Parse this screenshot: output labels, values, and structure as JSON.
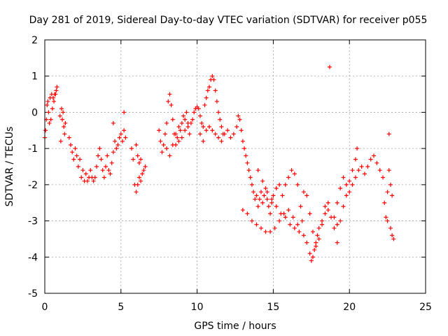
{
  "chart_data": {
    "type": "scatter",
    "title": "Day 281 of 2019, Sidereal Day-to-day VTEC variation (SDTVAR) for receiver p055",
    "xlabel": "GPS time / hours",
    "ylabel": "SDTVAR / TECUs",
    "xlim": [
      0,
      25
    ],
    "ylim": [
      -5,
      2
    ],
    "xticks": [
      0,
      5,
      10,
      15,
      20,
      25
    ],
    "yticks": [
      -5,
      -4,
      -3,
      -2,
      -1,
      0,
      1,
      2
    ],
    "grid": true,
    "marker": "+",
    "series": [
      {
        "name": "SDTVAR",
        "color": "#ff0000",
        "points": [
          [
            0.0,
            -0.7
          ],
          [
            0.05,
            -0.5
          ],
          [
            0.1,
            -0.2
          ],
          [
            0.15,
            0.2
          ],
          [
            0.2,
            0.3
          ],
          [
            0.25,
            0.0
          ],
          [
            0.3,
            -0.3
          ],
          [
            0.35,
            0.4
          ],
          [
            0.4,
            -0.2
          ],
          [
            0.45,
            0.5
          ],
          [
            0.5,
            0.1
          ],
          [
            0.55,
            0.4
          ],
          [
            0.6,
            0.3
          ],
          [
            0.65,
            0.5
          ],
          [
            0.7,
            0.5
          ],
          [
            0.75,
            0.6
          ],
          [
            0.8,
            0.7
          ],
          [
            1.0,
            -0.1
          ],
          [
            1.05,
            -0.8
          ],
          [
            1.1,
            0.1
          ],
          [
            1.15,
            -0.2
          ],
          [
            1.2,
            0.0
          ],
          [
            1.25,
            -0.4
          ],
          [
            1.3,
            -0.6
          ],
          [
            1.35,
            -0.3
          ],
          [
            1.6,
            -0.7
          ],
          [
            1.7,
            -0.9
          ],
          [
            1.8,
            -1.1
          ],
          [
            1.9,
            -1.3
          ],
          [
            2.0,
            -1.0
          ],
          [
            2.1,
            -1.2
          ],
          [
            2.2,
            -1.5
          ],
          [
            2.3,
            -1.3
          ],
          [
            2.4,
            -1.8
          ],
          [
            2.5,
            -1.6
          ],
          [
            2.6,
            -1.9
          ],
          [
            2.7,
            -1.7
          ],
          [
            2.8,
            -1.9
          ],
          [
            2.9,
            -1.8
          ],
          [
            3.0,
            -1.6
          ],
          [
            3.1,
            -1.8
          ],
          [
            3.2,
            -1.9
          ],
          [
            3.3,
            -1.8
          ],
          [
            3.4,
            -1.5
          ],
          [
            3.5,
            -1.2
          ],
          [
            3.6,
            -1.0
          ],
          [
            3.7,
            -1.3
          ],
          [
            3.8,
            -1.6
          ],
          [
            3.9,
            -1.8
          ],
          [
            4.0,
            -1.5
          ],
          [
            4.1,
            -1.2
          ],
          [
            4.2,
            -1.6
          ],
          [
            4.3,
            -1.7
          ],
          [
            4.4,
            -1.4
          ],
          [
            4.5,
            -1.1
          ],
          [
            4.6,
            -0.8
          ],
          [
            4.7,
            -1.0
          ],
          [
            4.8,
            -0.9
          ],
          [
            4.9,
            -0.7
          ],
          [
            5.0,
            -0.6
          ],
          [
            5.1,
            -0.8
          ],
          [
            5.2,
            -0.5
          ],
          [
            5.3,
            -0.7
          ],
          [
            5.2,
            0.0
          ],
          [
            4.5,
            -0.3
          ],
          [
            5.7,
            -1.0
          ],
          [
            5.8,
            -1.3
          ],
          [
            5.9,
            -2.0
          ],
          [
            6.0,
            -2.2
          ],
          [
            6.1,
            -2.0
          ],
          [
            6.2,
            -1.8
          ],
          [
            6.3,
            -1.9
          ],
          [
            6.4,
            -1.7
          ],
          [
            6.5,
            -1.6
          ],
          [
            6.6,
            -1.5
          ],
          [
            6.0,
            -0.9
          ],
          [
            6.1,
            -1.2
          ],
          [
            6.2,
            -1.4
          ],
          [
            6.3,
            -1.3
          ],
          [
            7.5,
            -0.5
          ],
          [
            7.6,
            -0.8
          ],
          [
            7.7,
            -1.1
          ],
          [
            7.8,
            -0.9
          ],
          [
            7.9,
            -0.6
          ],
          [
            8.0,
            -0.3
          ],
          [
            8.1,
            0.3
          ],
          [
            8.2,
            0.5
          ],
          [
            8.3,
            0.2
          ],
          [
            8.4,
            -0.2
          ],
          [
            8.5,
            -0.6
          ],
          [
            8.6,
            -0.9
          ],
          [
            8.7,
            -0.7
          ],
          [
            8.8,
            -0.4
          ],
          [
            8.9,
            -0.5
          ],
          [
            9.0,
            -0.3
          ],
          [
            9.1,
            -0.1
          ],
          [
            9.2,
            -0.2
          ],
          [
            9.3,
            0.0
          ],
          [
            9.4,
            -0.4
          ],
          [
            9.5,
            -0.6
          ],
          [
            9.6,
            -0.3
          ],
          [
            9.7,
            -0.2
          ],
          [
            9.8,
            0.0
          ],
          [
            9.9,
            0.1
          ],
          [
            10.0,
            0.15
          ],
          [
            10.1,
            0.1
          ],
          [
            10.2,
            -0.1
          ],
          [
            8.0,
            -1.0
          ],
          [
            8.2,
            -1.2
          ],
          [
            8.4,
            -0.9
          ],
          [
            8.6,
            -0.6
          ],
          [
            8.8,
            -0.8
          ],
          [
            9.0,
            -0.7
          ],
          [
            9.2,
            -0.5
          ],
          [
            9.4,
            -0.3
          ],
          [
            10.3,
            -0.3
          ],
          [
            10.4,
            -0.4
          ],
          [
            10.5,
            0.2
          ],
          [
            10.6,
            0.4
          ],
          [
            10.7,
            0.6
          ],
          [
            10.8,
            0.7
          ],
          [
            10.9,
            0.9
          ],
          [
            11.0,
            1.0
          ],
          [
            11.1,
            0.9
          ],
          [
            11.2,
            0.6
          ],
          [
            11.3,
            0.3
          ],
          [
            11.4,
            0.0
          ],
          [
            11.5,
            -0.2
          ],
          [
            11.6,
            -0.4
          ],
          [
            11.7,
            -0.6
          ],
          [
            10.2,
            -0.6
          ],
          [
            10.4,
            -0.8
          ],
          [
            10.6,
            -0.5
          ],
          [
            10.8,
            -0.4
          ],
          [
            11.0,
            -0.5
          ],
          [
            11.2,
            -0.6
          ],
          [
            11.4,
            -0.7
          ],
          [
            11.6,
            -0.8
          ],
          [
            11.8,
            -0.6
          ],
          [
            12.0,
            -0.5
          ],
          [
            12.2,
            -0.7
          ],
          [
            12.4,
            -0.6
          ],
          [
            12.6,
            -0.4
          ],
          [
            12.7,
            -0.1
          ],
          [
            12.8,
            -0.2
          ],
          [
            12.9,
            -0.5
          ],
          [
            13.0,
            -0.8
          ],
          [
            13.1,
            -1.0
          ],
          [
            13.2,
            -1.2
          ],
          [
            13.3,
            -1.4
          ],
          [
            13.4,
            -1.6
          ],
          [
            13.5,
            -1.8
          ],
          [
            13.6,
            -2.0
          ],
          [
            13.7,
            -2.2
          ],
          [
            13.8,
            -2.4
          ],
          [
            13.9,
            -2.3
          ],
          [
            14.0,
            -2.6
          ],
          [
            14.1,
            -2.4
          ],
          [
            14.2,
            -2.2
          ],
          [
            14.3,
            -2.5
          ],
          [
            14.4,
            -2.3
          ],
          [
            14.5,
            -2.1
          ],
          [
            14.6,
            -2.4
          ],
          [
            14.7,
            -2.6
          ],
          [
            14.8,
            -2.8
          ],
          [
            14.9,
            -2.5
          ],
          [
            15.0,
            -2.3
          ],
          [
            15.2,
            -2.1
          ],
          [
            15.4,
            -2.0
          ],
          [
            15.6,
            -2.3
          ],
          [
            15.8,
            -2.0
          ],
          [
            16.0,
            -1.8
          ],
          [
            16.2,
            -1.6
          ],
          [
            16.4,
            -1.7
          ],
          [
            16.6,
            -2.0
          ],
          [
            13.0,
            -2.7
          ],
          [
            13.3,
            -2.8
          ],
          [
            13.6,
            -3.0
          ],
          [
            13.9,
            -3.1
          ],
          [
            14.2,
            -3.2
          ],
          [
            14.5,
            -3.3
          ],
          [
            14.8,
            -3.3
          ],
          [
            15.1,
            -3.2
          ],
          [
            15.4,
            -3.0
          ],
          [
            15.7,
            -2.8
          ],
          [
            16.0,
            -2.7
          ],
          [
            16.3,
            -2.9
          ],
          [
            16.6,
            -3.1
          ],
          [
            16.9,
            -3.0
          ],
          [
            14.0,
            -1.6
          ],
          [
            14.3,
            -1.9
          ],
          [
            14.6,
            -2.2
          ],
          [
            14.9,
            -2.4
          ],
          [
            15.2,
            -2.6
          ],
          [
            15.5,
            -2.8
          ],
          [
            15.8,
            -2.9
          ],
          [
            16.1,
            -3.1
          ],
          [
            16.4,
            -3.2
          ],
          [
            16.7,
            -3.3
          ],
          [
            17.0,
            -3.4
          ],
          [
            17.2,
            -3.6
          ],
          [
            17.4,
            -3.9
          ],
          [
            17.5,
            -4.1
          ],
          [
            17.6,
            -4.0
          ],
          [
            17.7,
            -3.8
          ],
          [
            17.8,
            -3.6
          ],
          [
            17.9,
            -3.4
          ],
          [
            18.0,
            -3.2
          ],
          [
            18.2,
            -3.0
          ],
          [
            18.4,
            -2.8
          ],
          [
            18.6,
            -2.7
          ],
          [
            18.8,
            -2.9
          ],
          [
            19.0,
            -3.2
          ],
          [
            19.2,
            -3.1
          ],
          [
            16.8,
            -2.6
          ],
          [
            17.0,
            -2.2
          ],
          [
            17.2,
            -2.3
          ],
          [
            17.4,
            -2.8
          ],
          [
            17.6,
            -3.3
          ],
          [
            17.8,
            -3.7
          ],
          [
            18.0,
            -3.5
          ],
          [
            18.2,
            -3.1
          ],
          [
            18.4,
            -2.6
          ],
          [
            18.6,
            -2.5
          ],
          [
            18.7,
            1.25
          ],
          [
            19.0,
            -2.9
          ],
          [
            19.2,
            -2.5
          ],
          [
            19.4,
            -2.1
          ],
          [
            19.6,
            -1.8
          ],
          [
            19.8,
            -2.0
          ],
          [
            20.0,
            -2.2
          ],
          [
            20.2,
            -2.0
          ],
          [
            20.4,
            -1.8
          ],
          [
            20.6,
            -1.6
          ],
          [
            20.8,
            -1.5
          ],
          [
            21.0,
            -1.7
          ],
          [
            21.2,
            -1.5
          ],
          [
            21.4,
            -1.3
          ],
          [
            21.6,
            -1.2
          ],
          [
            21.8,
            -1.4
          ],
          [
            22.0,
            -1.6
          ],
          [
            22.2,
            -1.8
          ],
          [
            19.2,
            -3.6
          ],
          [
            19.4,
            -3.0
          ],
          [
            19.6,
            -2.6
          ],
          [
            19.8,
            -2.3
          ],
          [
            20.0,
            -1.9
          ],
          [
            20.2,
            -1.6
          ],
          [
            20.4,
            -1.3
          ],
          [
            20.5,
            -1.0
          ],
          [
            22.3,
            -2.5
          ],
          [
            22.4,
            -2.9
          ],
          [
            22.5,
            -3.0
          ],
          [
            22.6,
            -1.6
          ],
          [
            22.6,
            -0.6
          ],
          [
            22.7,
            -3.2
          ],
          [
            22.8,
            -3.4
          ],
          [
            22.9,
            -3.5
          ],
          [
            22.5,
            -2.2
          ],
          [
            22.7,
            -2.0
          ],
          [
            22.8,
            -2.3
          ]
        ]
      }
    ]
  }
}
